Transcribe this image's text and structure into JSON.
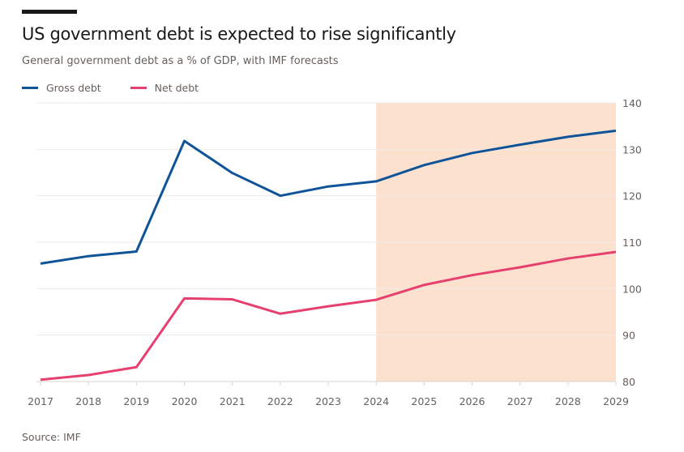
{
  "chart_data": {
    "type": "line",
    "title": "US government debt is expected to rise significantly",
    "subtitle": "General government debt as a % of GDP, with IMF forecasts",
    "source": "Source: IMF",
    "x": [
      2017,
      2018,
      2019,
      2020,
      2021,
      2022,
      2023,
      2024,
      2025,
      2026,
      2027,
      2028,
      2029
    ],
    "x_tick_labels": [
      "2017",
      "2018",
      "2019",
      "2020",
      "2021",
      "2022",
      "2023",
      "2024",
      "2025",
      "2026",
      "2027",
      "2028",
      "2029"
    ],
    "y_ticks": [
      80,
      90,
      100,
      110,
      120,
      130,
      140
    ],
    "y_tick_labels": [
      "80",
      "90",
      "100",
      "110",
      "120",
      "130",
      "140"
    ],
    "ylim": [
      80,
      140
    ],
    "y_axis_side": "right",
    "grid": true,
    "legend_position": "top-left",
    "forecast_shading": {
      "from": 2024,
      "to": 2029,
      "color": "#fde1cf"
    },
    "series": [
      {
        "name": "Gross debt",
        "color": "#0f5499",
        "values": [
          105.4,
          107.0,
          108.0,
          131.8,
          124.9,
          120.0,
          122.0,
          123.1,
          126.6,
          129.2,
          131.0,
          132.7,
          134.0
        ]
      },
      {
        "name": "Net debt",
        "color": "#e6406f",
        "values": [
          80.4,
          81.4,
          83.1,
          97.9,
          97.7,
          94.6,
          96.2,
          97.6,
          100.8,
          102.9,
          104.6,
          106.5,
          107.9
        ]
      }
    ]
  }
}
